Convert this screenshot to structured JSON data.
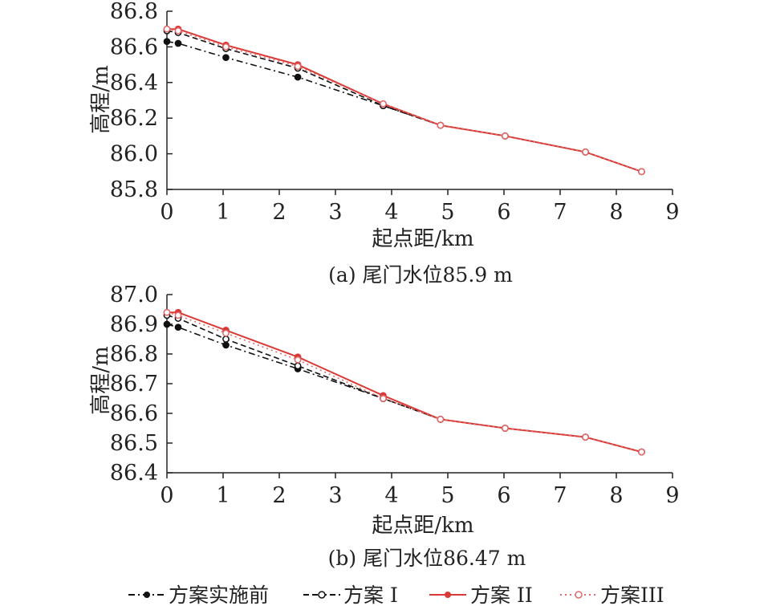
{
  "legend": [
    {
      "label": "方案实施前",
      "color": "#111111",
      "dash": "8 4 2 4",
      "marker": "filled"
    },
    {
      "label": "方案 I",
      "color": "#111111",
      "dash": "7 4",
      "marker": "open"
    },
    {
      "label": "方案 II",
      "color": "#d93a36",
      "dash": "",
      "marker": "filled"
    },
    {
      "label": "方案III",
      "color": "#e06a6a",
      "dash": "2 4",
      "marker": "open"
    }
  ],
  "chart_data": [
    {
      "type": "line",
      "caption": "(a) 尾门水位85.9 m",
      "xlabel": "起点距/km",
      "ylabel": "高程/m",
      "xlim": [
        0,
        9
      ],
      "ylim": [
        85.8,
        86.8
      ],
      "xticks": [
        "0",
        "1",
        "2",
        "3",
        "4",
        "5",
        "6",
        "7",
        "8",
        "9"
      ],
      "yticks": [
        "85.8",
        "86.0",
        "86.2",
        "86.4",
        "86.6",
        "86.8"
      ],
      "x": [
        0,
        0.2,
        1.05,
        2.33,
        3.85,
        4.87,
        6.02,
        7.45,
        8.45
      ],
      "series": [
        {
          "name": "方案实施前",
          "values": [
            86.63,
            86.62,
            86.54,
            86.43,
            86.27,
            86.16,
            86.1,
            86.01,
            85.9
          ]
        },
        {
          "name": "方案 I",
          "values": [
            86.69,
            86.68,
            86.59,
            86.48,
            86.27,
            86.16,
            86.1,
            86.01,
            85.9
          ]
        },
        {
          "name": "方案 II",
          "values": [
            86.7,
            86.7,
            86.61,
            86.5,
            86.28,
            86.16,
            86.1,
            86.01,
            85.9
          ]
        },
        {
          "name": "方案III",
          "values": [
            86.7,
            86.69,
            86.6,
            86.49,
            86.28,
            86.16,
            86.1,
            86.01,
            85.9
          ]
        }
      ]
    },
    {
      "type": "line",
      "caption": "(b) 尾门水位86.47 m",
      "xlabel": "起点距/km",
      "ylabel": "高程/m",
      "xlim": [
        0,
        9
      ],
      "ylim": [
        86.4,
        87.0
      ],
      "xticks": [
        "0",
        "1",
        "2",
        "3",
        "4",
        "5",
        "6",
        "7",
        "8",
        "9"
      ],
      "yticks": [
        "86.4",
        "86.5",
        "86.6",
        "86.7",
        "86.8",
        "86.9",
        "87.0"
      ],
      "x": [
        0,
        0.2,
        1.05,
        2.33,
        3.85,
        4.87,
        6.02,
        7.45,
        8.45
      ],
      "series": [
        {
          "name": "方案实施前",
          "values": [
            86.9,
            86.89,
            86.83,
            86.75,
            86.65,
            86.58,
            86.55,
            86.52,
            86.47
          ]
        },
        {
          "name": "方案 I",
          "values": [
            86.93,
            86.92,
            86.85,
            86.76,
            86.65,
            86.58,
            86.55,
            86.52,
            86.47
          ]
        },
        {
          "name": "方案 II",
          "values": [
            86.94,
            86.94,
            86.88,
            86.79,
            86.66,
            86.58,
            86.55,
            86.52,
            86.47
          ]
        },
        {
          "name": "方案III",
          "values": [
            86.94,
            86.93,
            86.87,
            86.78,
            86.65,
            86.58,
            86.55,
            86.52,
            86.47
          ]
        }
      ]
    }
  ]
}
